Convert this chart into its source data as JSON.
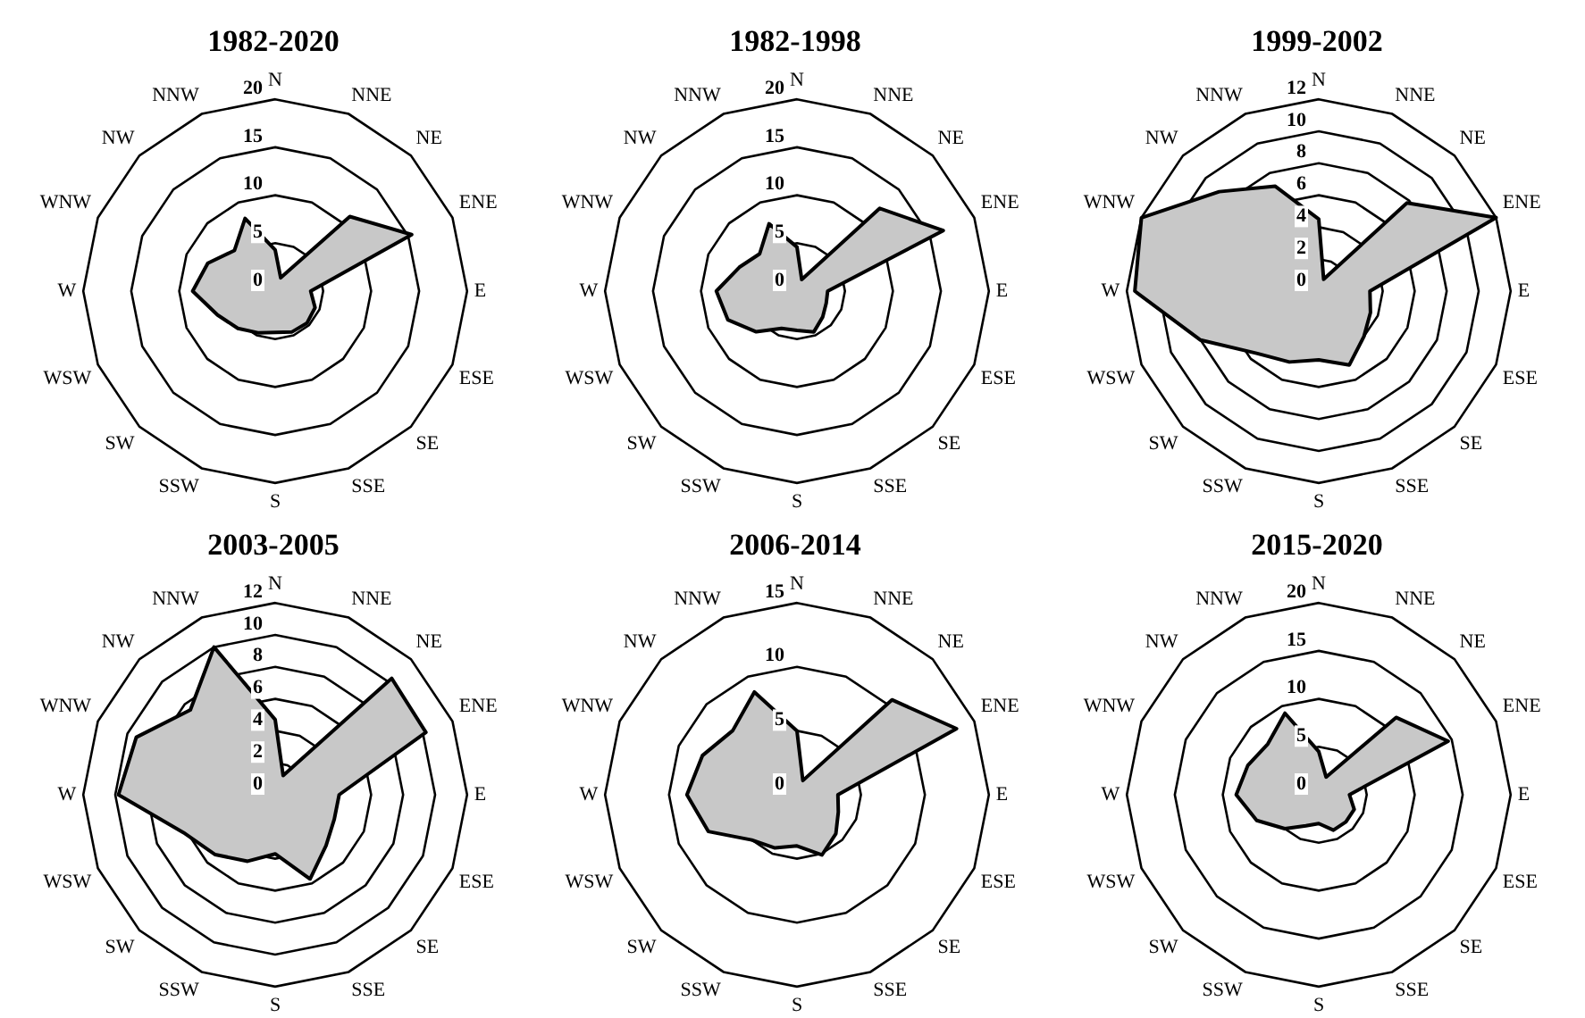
{
  "chart_data": [
    {
      "type": "radar",
      "title": "1982-2020",
      "categories": [
        "N",
        "NNE",
        "NE",
        "ENE",
        "E",
        "ESE",
        "SE",
        "SSE",
        "S",
        "SSW",
        "SW",
        "WSW",
        "W",
        "WNW",
        "NW",
        "NNW"
      ],
      "ylim": [
        0,
        20
      ],
      "yticks": [
        0,
        5,
        10,
        15,
        20
      ],
      "grid": true,
      "series": [
        {
          "color": "#c8c8c8",
          "values": [
            4.3,
            1.5,
            11,
            15.4,
            3.7,
            4.5,
            4.7,
            4.6,
            4.3,
            4.7,
            5.5,
            6.5,
            8.6,
            7.6,
            6,
            8.2
          ]
        }
      ]
    },
    {
      "type": "radar",
      "title": "1982-1998",
      "categories": [
        "N",
        "NNE",
        "NE",
        "ENE",
        "E",
        "ESE",
        "SE",
        "SSE",
        "S",
        "SSW",
        "SW",
        "WSW",
        "W",
        "WNW",
        "NW",
        "NNW"
      ],
      "ylim": [
        0,
        20
      ],
      "yticks": [
        0,
        5,
        10,
        15,
        20
      ],
      "grid": true,
      "series": [
        {
          "color": "#c8c8c8",
          "values": [
            4.6,
            1.3,
            12.2,
            16.5,
            3.2,
            3.3,
            3.8,
            4.6,
            4.1,
            4.2,
            6,
            7.8,
            8.4,
            6.5,
            5.5,
            7.6
          ]
        }
      ]
    },
    {
      "type": "radar",
      "title": "1999-2002",
      "categories": [
        "N",
        "NNE",
        "NE",
        "ENE",
        "E",
        "ESE",
        "SE",
        "SSE",
        "S",
        "SSW",
        "SW",
        "WSW",
        "W",
        "WNW",
        "NW",
        "NNW"
      ],
      "ylim": [
        0,
        12
      ],
      "yticks": [
        0,
        2,
        4,
        6,
        8,
        10,
        12
      ],
      "grid": true,
      "series": [
        {
          "color": "#c8c8c8",
          "values": [
            4.5,
            0.8,
            7.8,
            12,
            3.2,
            3.5,
            4,
            5,
            4.3,
            4.8,
            5.5,
            8,
            11.5,
            12,
            8.8,
            7.1
          ]
        }
      ]
    },
    {
      "type": "radar",
      "title": "2003-2005",
      "categories": [
        "N",
        "NNE",
        "NE",
        "ENE",
        "E",
        "ESE",
        "SE",
        "SSE",
        "S",
        "SSW",
        "SW",
        "WSW",
        "W",
        "WNW",
        "NW",
        "NNW"
      ],
      "ylim": [
        0,
        12
      ],
      "yticks": [
        0,
        2,
        4,
        6,
        8,
        10,
        12
      ],
      "grid": true,
      "series": [
        {
          "color": "#c8c8c8",
          "values": [
            4.7,
            1.3,
            10.3,
            10.2,
            4,
            4,
            4.5,
            5.7,
            3.7,
            4.5,
            5.3,
            6.2,
            9.8,
            9.4,
            7.5,
            10
          ]
        }
      ]
    },
    {
      "type": "radar",
      "title": "2006-2014",
      "categories": [
        "N",
        "NNE",
        "NE",
        "ENE",
        "E",
        "ESE",
        "SE",
        "SSE",
        "S",
        "SSW",
        "SW",
        "WSW",
        "W",
        "WNW",
        "NW",
        "NNW"
      ],
      "ylim": [
        0,
        15
      ],
      "yticks": [
        0,
        5,
        10,
        15
      ],
      "grid": true,
      "series": [
        {
          "color": "#c8c8c8",
          "values": [
            5,
            1.2,
            10.5,
            13.5,
            3.2,
            3.5,
            4.3,
            5.1,
            4,
            4.5,
            5,
            7.5,
            8.6,
            8,
            7.1,
            8.7
          ]
        }
      ]
    },
    {
      "type": "radar",
      "title": "2015-2020",
      "categories": [
        "N",
        "NNE",
        "NE",
        "ENE",
        "E",
        "ESE",
        "SE",
        "SSE",
        "S",
        "SSW",
        "SW",
        "WSW",
        "W",
        "WNW",
        "NW",
        "NNW"
      ],
      "ylim": [
        0,
        20
      ],
      "yticks": [
        0,
        5,
        10,
        15,
        20
      ],
      "grid": true,
      "series": [
        {
          "color": "#c8c8c8",
          "values": [
            4.5,
            2,
            11.4,
            14.6,
            3.2,
            4,
            4,
            4,
            3,
            3.5,
            5,
            7,
            8.6,
            8,
            7.5,
            9.2
          ]
        }
      ]
    }
  ]
}
